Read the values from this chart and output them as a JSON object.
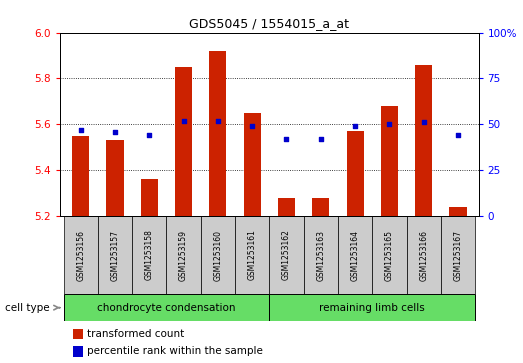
{
  "title": "GDS5045 / 1554015_a_at",
  "samples": [
    "GSM1253156",
    "GSM1253157",
    "GSM1253158",
    "GSM1253159",
    "GSM1253160",
    "GSM1253161",
    "GSM1253162",
    "GSM1253163",
    "GSM1253164",
    "GSM1253165",
    "GSM1253166",
    "GSM1253167"
  ],
  "transformed_count": [
    5.55,
    5.53,
    5.36,
    5.85,
    5.92,
    5.65,
    5.28,
    5.28,
    5.57,
    5.68,
    5.86,
    5.24
  ],
  "percentile_rank": [
    47,
    46,
    44,
    52,
    52,
    49,
    42,
    42,
    49,
    50,
    51,
    44
  ],
  "ylim_left": [
    5.2,
    6.0
  ],
  "ylim_right": [
    0,
    100
  ],
  "yticks_left": [
    5.2,
    5.4,
    5.6,
    5.8,
    6.0
  ],
  "yticks_right": [
    0,
    25,
    50,
    75,
    100
  ],
  "ytick_labels_right": [
    "0",
    "25",
    "50",
    "75",
    "100%"
  ],
  "bar_color": "#cc2200",
  "dot_color": "#0000cc",
  "bar_width": 0.5,
  "group1_label": "chondrocyte condensation",
  "group2_label": "remaining limb cells",
  "group_color": "#66dd66",
  "cell_type_label": "cell type",
  "legend_item1": "transformed count",
  "legend_item2": "percentile rank within the sample",
  "grid_color": "black",
  "sample_bg_color": "#cccccc",
  "plot_bg_color": "#ffffff"
}
